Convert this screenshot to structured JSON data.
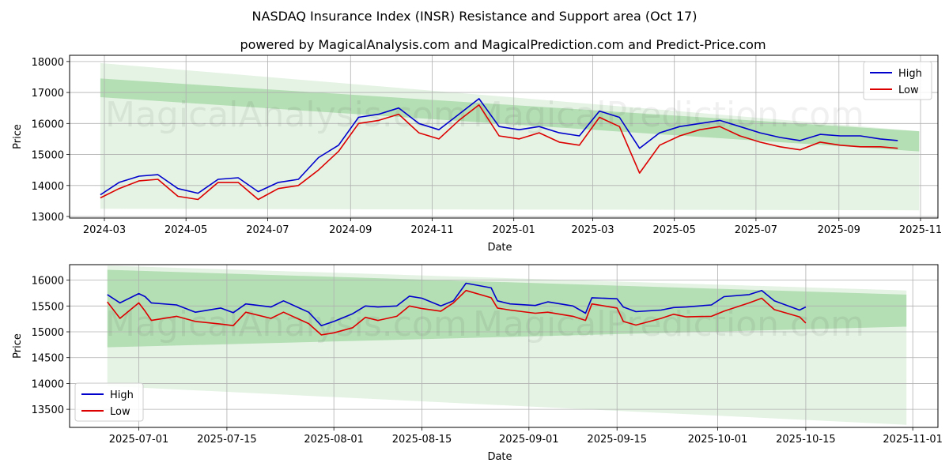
{
  "title": "NASDAQ Insurance Index (INSR) Resistance and Support area (Oct 17)",
  "subtitle": "powered by MagicalAnalysis.com and MagicalPrediction.com and Predict-Price.com",
  "watermark_left": "MagicalAnalysis.com",
  "watermark_right": "MagicalPrediction.com",
  "colors": {
    "high": "#0000cc",
    "low": "#dd0000",
    "band_dark": "#5cb85c",
    "band_light": "#a5d6a7"
  },
  "chart_data": [
    {
      "type": "line",
      "xlabel": "Date",
      "ylabel": "Price",
      "xlim": [
        "2024-02-04",
        "2025-11-14"
      ],
      "ylim": [
        12950,
        18200
      ],
      "xticks": [
        "2024-03",
        "2024-05",
        "2024-07",
        "2024-09",
        "2024-11",
        "2025-01",
        "2025-03",
        "2025-05",
        "2025-07",
        "2025-09",
        "2025-11"
      ],
      "yticks": [
        13000,
        14000,
        15000,
        16000,
        17000,
        18000
      ],
      "legend": {
        "position": "top-right",
        "entries": [
          "High",
          "Low"
        ]
      },
      "x": [
        "2024-02-27",
        "2024-03-12",
        "2024-03-27",
        "2024-04-10",
        "2024-04-25",
        "2024-05-10",
        "2024-05-25",
        "2024-06-09",
        "2024-06-24",
        "2024-07-09",
        "2024-07-24",
        "2024-08-08",
        "2024-08-23",
        "2024-09-07",
        "2024-09-22",
        "2024-10-07",
        "2024-10-22",
        "2024-11-06",
        "2024-11-21",
        "2024-12-06",
        "2024-12-21",
        "2025-01-05",
        "2025-01-20",
        "2025-02-04",
        "2025-02-19",
        "2025-03-06",
        "2025-03-21",
        "2025-04-05",
        "2025-04-20",
        "2025-05-05",
        "2025-05-20",
        "2025-06-04",
        "2025-06-19",
        "2025-07-04",
        "2025-07-19",
        "2025-08-03",
        "2025-08-18",
        "2025-09-02",
        "2025-09-17",
        "2025-10-02",
        "2025-10-15"
      ],
      "series": [
        {
          "name": "High",
          "values": [
            13700,
            14100,
            14300,
            14350,
            13900,
            13750,
            14200,
            14250,
            13800,
            14100,
            14200,
            14900,
            15300,
            16200,
            16300,
            16500,
            16000,
            15800,
            16300,
            16800,
            15900,
            15800,
            15900,
            15700,
            15600,
            16400,
            16200,
            15200,
            15700,
            15900,
            16000,
            16100,
            15900,
            15700,
            15550,
            15450,
            15650,
            15600,
            15600,
            15500,
            15450
          ]
        },
        {
          "name": "Low",
          "values": [
            13600,
            13900,
            14150,
            14200,
            13650,
            13550,
            14100,
            14100,
            13550,
            13900,
            14000,
            14500,
            15100,
            16000,
            16100,
            16300,
            15700,
            15500,
            16100,
            16600,
            15600,
            15500,
            15700,
            15400,
            15300,
            16200,
            15900,
            14400,
            15300,
            15600,
            15800,
            15900,
            15600,
            15400,
            15250,
            15150,
            15400,
            15300,
            15250,
            15250,
            15200
          ]
        }
      ],
      "bands": [
        {
          "name": "outer",
          "start_date": "2024-02-27",
          "end_date": "2025-10-31",
          "start_range": [
            13250,
            17950
          ],
          "end_range": [
            13200,
            15750
          ]
        },
        {
          "name": "inner",
          "start_date": "2024-02-27",
          "end_date": "2025-10-31",
          "start_range": [
            16850,
            17450
          ],
          "end_range": [
            15100,
            15750
          ]
        }
      ]
    },
    {
      "type": "line",
      "xlabel": "Date",
      "ylabel": "Price",
      "xlim": [
        "2025-06-20",
        "2025-11-05"
      ],
      "ylim": [
        13150,
        16300
      ],
      "xticks": [
        "2025-07-01",
        "2025-07-15",
        "2025-08-01",
        "2025-08-15",
        "2025-09-01",
        "2025-09-15",
        "2025-10-01",
        "2025-10-15",
        "2025-11-01"
      ],
      "yticks": [
        13500,
        14000,
        14500,
        15000,
        15500,
        16000
      ],
      "legend": {
        "position": "bottom-left",
        "entries": [
          "High",
          "Low"
        ]
      },
      "x": [
        "2025-06-26",
        "2025-06-28",
        "2025-07-01",
        "2025-07-02",
        "2025-07-03",
        "2025-07-07",
        "2025-07-10",
        "2025-07-14",
        "2025-07-16",
        "2025-07-18",
        "2025-07-22",
        "2025-07-24",
        "2025-07-28",
        "2025-07-30",
        "2025-08-01",
        "2025-08-04",
        "2025-08-06",
        "2025-08-08",
        "2025-08-11",
        "2025-08-13",
        "2025-08-15",
        "2025-08-18",
        "2025-08-20",
        "2025-08-22",
        "2025-08-26",
        "2025-08-27",
        "2025-08-29",
        "2025-09-02",
        "2025-09-04",
        "2025-09-08",
        "2025-09-10",
        "2025-09-11",
        "2025-09-15",
        "2025-09-16",
        "2025-09-18",
        "2025-09-22",
        "2025-09-24",
        "2025-09-26",
        "2025-09-30",
        "2025-10-02",
        "2025-10-06",
        "2025-10-08",
        "2025-10-10",
        "2025-10-14",
        "2025-10-15"
      ],
      "series": [
        {
          "name": "High",
          "values": [
            15720,
            15560,
            15740,
            15680,
            15560,
            15520,
            15380,
            15460,
            15370,
            15540,
            15480,
            15600,
            15380,
            15120,
            15200,
            15350,
            15500,
            15480,
            15500,
            15690,
            15650,
            15500,
            15600,
            15940,
            15850,
            15600,
            15540,
            15510,
            15580,
            15500,
            15360,
            15660,
            15640,
            15480,
            15390,
            15420,
            15470,
            15480,
            15520,
            15680,
            15720,
            15800,
            15600,
            15420,
            15480
          ]
        },
        {
          "name": "Low",
          "values": [
            15580,
            15260,
            15560,
            15400,
            15220,
            15300,
            15200,
            15150,
            15120,
            15380,
            15260,
            15380,
            15160,
            14940,
            14980,
            15080,
            15280,
            15220,
            15300,
            15500,
            15450,
            15400,
            15560,
            15800,
            15660,
            15460,
            15420,
            15360,
            15380,
            15300,
            15220,
            15540,
            15460,
            15200,
            15130,
            15260,
            15340,
            15290,
            15300,
            15400,
            15560,
            15650,
            15430,
            15290,
            15170
          ]
        }
      ],
      "bands": [
        {
          "name": "outer",
          "start_date": "2025-06-26",
          "end_date": "2025-10-31",
          "start_range": [
            13950,
            16280
          ],
          "end_range": [
            13200,
            15800
          ]
        },
        {
          "name": "inner",
          "start_date": "2025-06-26",
          "end_date": "2025-10-31",
          "start_range": [
            14700,
            16200
          ],
          "end_range": [
            15100,
            15720
          ]
        }
      ]
    }
  ]
}
